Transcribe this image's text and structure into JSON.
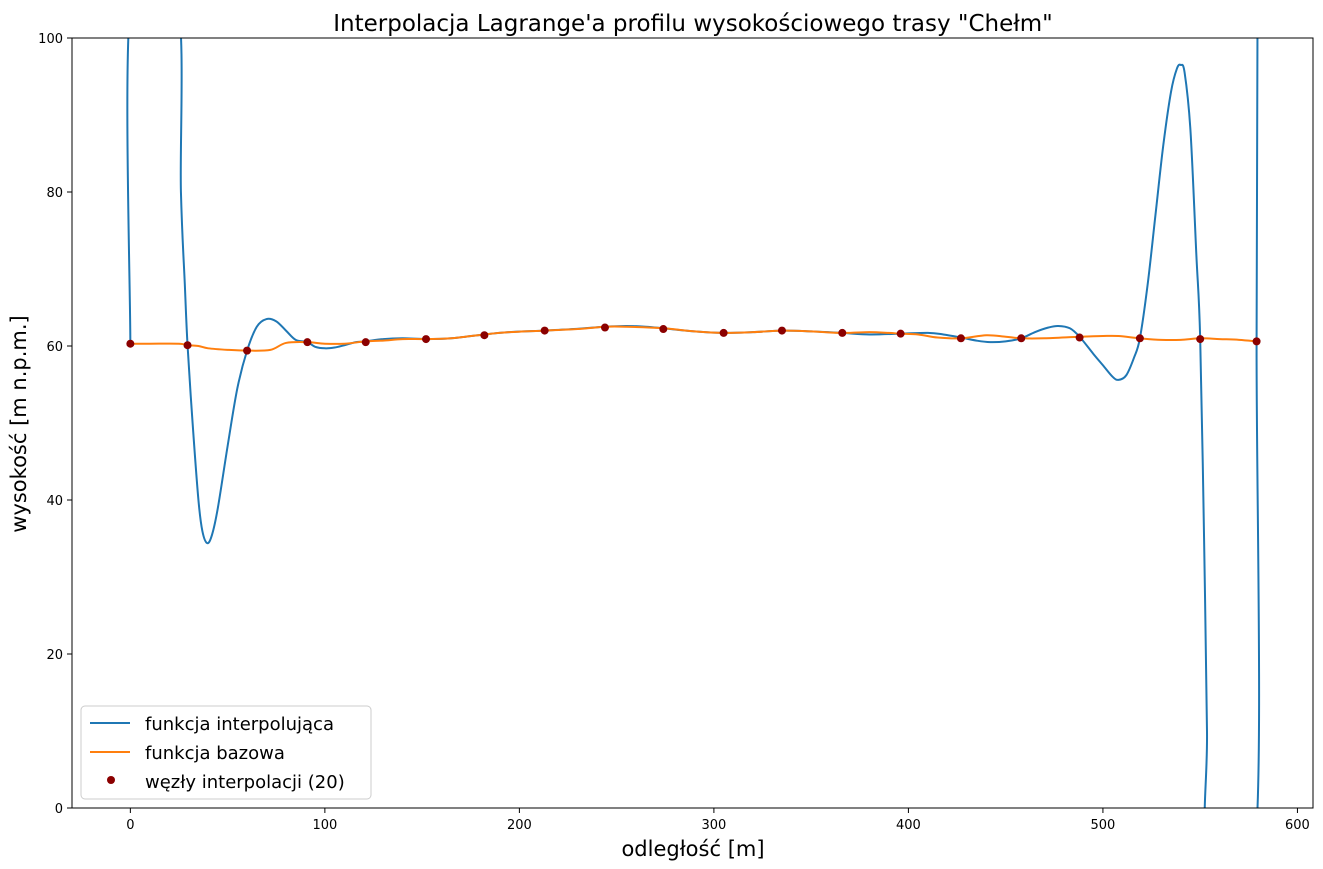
{
  "chart_data": {
    "type": "line",
    "title": "Interpolacja Lagrange'a profilu wysokościowego trasy \"Chełm\"",
    "xlabel": "odległość [m]",
    "ylabel": "wysokość [m n.p.m.]",
    "xlim": [
      -30,
      608
    ],
    "ylim": [
      0,
      100
    ],
    "xticks": [
      0,
      100,
      200,
      300,
      400,
      500,
      600
    ],
    "yticks": [
      0,
      20,
      40,
      60,
      80,
      100
    ],
    "grid": false,
    "legend_position": "lower-left",
    "series": [
      {
        "name": "funkcja interpolująca",
        "kind": "line",
        "color": "#1f77b4",
        "points": [
          [
            0,
            60.2
          ],
          [
            0.3,
            105
          ],
          [
            24,
            105
          ],
          [
            26,
            80
          ],
          [
            28,
            68
          ],
          [
            29.4,
            60.1
          ],
          [
            32,
            50
          ],
          [
            35,
            40
          ],
          [
            37,
            36
          ],
          [
            39.5,
            34.4
          ],
          [
            42,
            35.5
          ],
          [
            45,
            39
          ],
          [
            50,
            47
          ],
          [
            55,
            54.5
          ],
          [
            60,
            59.4
          ],
          [
            65,
            62.5
          ],
          [
            70,
            63.5
          ],
          [
            75,
            63.2
          ],
          [
            80,
            62
          ],
          [
            85,
            60.8
          ],
          [
            91,
            60.5
          ],
          [
            95,
            59.9
          ],
          [
            100,
            59.7
          ],
          [
            105,
            59.8
          ],
          [
            110,
            60.1
          ],
          [
            116,
            60.5
          ],
          [
            121,
            60.6
          ],
          [
            130,
            60.9
          ],
          [
            140,
            61.0
          ],
          [
            152,
            60.9
          ],
          [
            165,
            61.0
          ],
          [
            182,
            61.5
          ],
          [
            195,
            61.8
          ],
          [
            213,
            62.0
          ],
          [
            228,
            62.2
          ],
          [
            244,
            62.5
          ],
          [
            255,
            62.6
          ],
          [
            265,
            62.5
          ],
          [
            274,
            62.3
          ],
          [
            290,
            61.9
          ],
          [
            305,
            61.7
          ],
          [
            320,
            61.8
          ],
          [
            335,
            62.0
          ],
          [
            350,
            61.9
          ],
          [
            366,
            61.7
          ],
          [
            380,
            61.5
          ],
          [
            396,
            61.6
          ],
          [
            410,
            61.7
          ],
          [
            418,
            61.5
          ],
          [
            427,
            61.1
          ],
          [
            435,
            60.7
          ],
          [
            442,
            60.5
          ],
          [
            450,
            60.6
          ],
          [
            458,
            61.0
          ],
          [
            465,
            61.8
          ],
          [
            472,
            62.4
          ],
          [
            477,
            62.6
          ],
          [
            483,
            62.3
          ],
          [
            488,
            61.2
          ],
          [
            495,
            59
          ],
          [
            500,
            57.5
          ],
          [
            505,
            56
          ],
          [
            508,
            55.6
          ],
          [
            512,
            56.2
          ],
          [
            516,
            58.5
          ],
          [
            519,
            61.0
          ],
          [
            523,
            68
          ],
          [
            527,
            77
          ],
          [
            531,
            86
          ],
          [
            535,
            93
          ],
          [
            538,
            96
          ],
          [
            540,
            96.5
          ],
          [
            542,
            95.5
          ],
          [
            545,
            88
          ],
          [
            548,
            72
          ],
          [
            550,
            61.0
          ],
          [
            552,
            35
          ],
          [
            553.5,
            10
          ],
          [
            554.2,
            -5
          ],
          [
            578.3,
            -5
          ],
          [
            579,
            60.6
          ],
          [
            579.5,
            105
          ]
        ]
      },
      {
        "name": "funkcja bazowa",
        "kind": "line",
        "color": "#ff7f0e",
        "points": [
          [
            0,
            60.3
          ],
          [
            10,
            60.3
          ],
          [
            25,
            60.3
          ],
          [
            29.4,
            60.1
          ],
          [
            35,
            60.0
          ],
          [
            40,
            59.7
          ],
          [
            50,
            59.5
          ],
          [
            60,
            59.4
          ],
          [
            72,
            59.5
          ],
          [
            80,
            60.4
          ],
          [
            91,
            60.5
          ],
          [
            100,
            60.3
          ],
          [
            110,
            60.3
          ],
          [
            121,
            60.6
          ],
          [
            130,
            60.7
          ],
          [
            140,
            60.9
          ],
          [
            152,
            60.9
          ],
          [
            165,
            61.0
          ],
          [
            182,
            61.5
          ],
          [
            195,
            61.8
          ],
          [
            213,
            62.0
          ],
          [
            230,
            62.2
          ],
          [
            244,
            62.5
          ],
          [
            255,
            62.5
          ],
          [
            274,
            62.3
          ],
          [
            290,
            61.9
          ],
          [
            305,
            61.7
          ],
          [
            320,
            61.8
          ],
          [
            335,
            62.0
          ],
          [
            350,
            61.9
          ],
          [
            366,
            61.7
          ],
          [
            380,
            61.8
          ],
          [
            390,
            61.7
          ],
          [
            396,
            61.6
          ],
          [
            405,
            61.5
          ],
          [
            415,
            61.1
          ],
          [
            427,
            61.0
          ],
          [
            440,
            61.4
          ],
          [
            450,
            61.2
          ],
          [
            458,
            61.0
          ],
          [
            470,
            61.0
          ],
          [
            488,
            61.2
          ],
          [
            500,
            61.3
          ],
          [
            508,
            61.3
          ],
          [
            519,
            61.0
          ],
          [
            530,
            60.8
          ],
          [
            540,
            60.8
          ],
          [
            550,
            61.0
          ],
          [
            560,
            60.9
          ],
          [
            570,
            60.8
          ],
          [
            579,
            60.6
          ]
        ]
      },
      {
        "name": "węzły interpolacji (20)",
        "kind": "scatter",
        "color": "#8b0000",
        "x": [
          0,
          29.4,
          60,
          91,
          121,
          152,
          182,
          213,
          244,
          274,
          305,
          335,
          366,
          396,
          427,
          458,
          488,
          519,
          550,
          579
        ],
        "y": [
          60.3,
          60.1,
          59.4,
          60.5,
          60.5,
          60.9,
          61.4,
          62.0,
          62.4,
          62.2,
          61.7,
          62.0,
          61.7,
          61.6,
          61.0,
          61.0,
          61.1,
          61.0,
          60.9,
          60.6
        ]
      }
    ]
  }
}
